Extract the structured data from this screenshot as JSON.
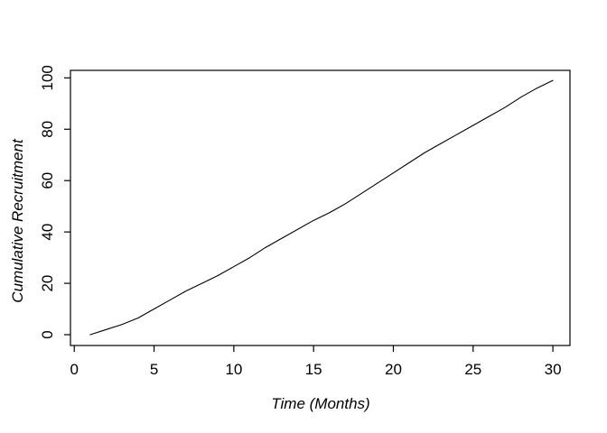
{
  "figure": {
    "background": "#ffffff",
    "foreground": "#000000"
  },
  "chart_data": {
    "type": "line",
    "title": "",
    "xlabel": "Time (Months)",
    "ylabel": "Cumulative Recruitment",
    "x": [
      1,
      2,
      3,
      4,
      5,
      6,
      7,
      8,
      9,
      10,
      11,
      12,
      13,
      14,
      15,
      16,
      17,
      18,
      19,
      20,
      21,
      22,
      23,
      24,
      25,
      26,
      27,
      28,
      29,
      30
    ],
    "y": [
      0,
      2,
      4,
      6.5,
      10,
      13.5,
      17,
      20,
      23,
      26.5,
      30,
      34,
      37.5,
      41,
      44.5,
      47.5,
      51,
      55,
      59,
      63,
      67,
      71,
      74.5,
      78,
      81.5,
      85,
      88.5,
      92.5,
      96,
      99
    ],
    "xticks": {
      "values": [
        0,
        5,
        10,
        15,
        20,
        25,
        30
      ],
      "labels": [
        "0",
        "5",
        "10",
        "15",
        "20",
        "25",
        "30"
      ]
    },
    "yticks": {
      "values": [
        0,
        20,
        40,
        60,
        80,
        100
      ],
      "labels": [
        "0",
        "20",
        "40",
        "60",
        "80",
        "100"
      ]
    },
    "xlim": [
      -0.24,
      31.07
    ],
    "ylim": [
      -4.21,
      102.92
    ],
    "grid": false,
    "legend": null,
    "line_color": "#000000"
  }
}
